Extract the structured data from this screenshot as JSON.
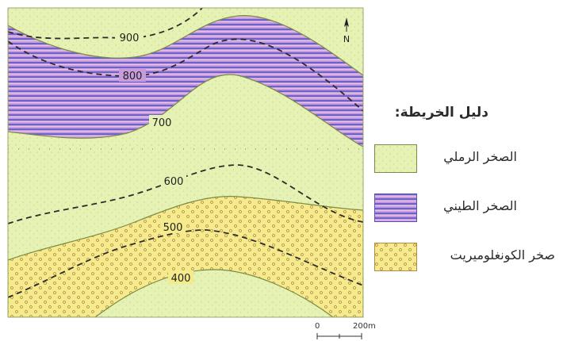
{
  "map": {
    "north_label": "N",
    "contours": [
      {
        "label": "900"
      },
      {
        "label": "800"
      },
      {
        "label": "700"
      },
      {
        "label": "600"
      },
      {
        "label": "500"
      },
      {
        "label": "400"
      }
    ],
    "colors": {
      "sandstone": "#e6f2b4",
      "shale": "#c294d6",
      "shale_stripe": "#6d62c8",
      "conglomerate": "#f6eb8c",
      "border": "#7b8a44",
      "contour": "#2b2b2b"
    }
  },
  "legend": {
    "title": "دليل الخريطة:",
    "items": [
      {
        "label": "الصخر الرملي"
      },
      {
        "label": "الصخر الطيني"
      },
      {
        "label": "صخر الكونغلوميريت"
      }
    ]
  },
  "scale": {
    "start": "0",
    "end": "200",
    "unit": "m"
  }
}
